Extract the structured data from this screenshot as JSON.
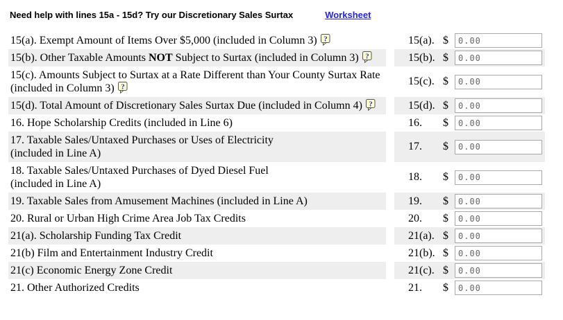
{
  "header": {
    "prompt": "Need help with lines 15a - 15d? Try our Discretionary Sales Surtax",
    "link_label": "Worksheet"
  },
  "form": {
    "currency_symbol": "$",
    "rows": [
      {
        "line": "15(a).",
        "value": "0.00",
        "help": true,
        "label_lines": [
          [
            {
              "text": "15(a). Exempt Amount of Items Over $5,000 (included in Column 3)"
            }
          ]
        ]
      },
      {
        "line": "15(b).",
        "value": "0.00",
        "help": true,
        "label_lines": [
          [
            {
              "text": "15(b). Other Taxable Amounts "
            },
            {
              "text": "NOT",
              "bold": true
            },
            {
              "text": " Subject to Surtax (included in Column 3)"
            }
          ]
        ]
      },
      {
        "line": "15(c).",
        "value": "0.00",
        "help": true,
        "label_lines": [
          [
            {
              "text": "15(c). Amounts Subject to Surtax at a Rate Different than Your County Surtax Rate"
            }
          ],
          [
            {
              "text": "(included in Column 3)"
            }
          ]
        ]
      },
      {
        "line": "15(d).",
        "value": "0.00",
        "help": true,
        "label_lines": [
          [
            {
              "text": "15(d). Total Amount of Discretionary Sales Surtax Due (included in Column 4)"
            }
          ]
        ]
      },
      {
        "line": "16.",
        "value": "0.00",
        "help": false,
        "label_lines": [
          [
            {
              "text": "16. Hope Scholarship Credits (included in Line 6)"
            }
          ]
        ]
      },
      {
        "line": "17.",
        "value": "0.00",
        "help": false,
        "label_lines": [
          [
            {
              "text": "17. Taxable Sales/Untaxed Purchases or Uses of Electricity"
            }
          ],
          [
            {
              "text": "(included in Line A)"
            }
          ]
        ]
      },
      {
        "line": "18.",
        "value": "0.00",
        "help": false,
        "label_lines": [
          [
            {
              "text": "18. Taxable Sales/Untaxed Purchases of Dyed Diesel Fuel"
            }
          ],
          [
            {
              "text": "(included in Line A)"
            }
          ]
        ]
      },
      {
        "line": "19.",
        "value": "0.00",
        "help": false,
        "label_lines": [
          [
            {
              "text": "19. Taxable Sales from Amusement Machines (included in Line A)"
            }
          ]
        ]
      },
      {
        "line": "20.",
        "value": "0.00",
        "help": false,
        "label_lines": [
          [
            {
              "text": "20. Rural or Urban High Crime Area Job Tax Credits"
            }
          ]
        ]
      },
      {
        "line": "21(a).",
        "value": "0.00",
        "help": false,
        "label_lines": [
          [
            {
              "text": "21(a). Scholarship Funding Tax Credit"
            }
          ]
        ]
      },
      {
        "line": "21(b).",
        "value": "0.00",
        "help": false,
        "label_lines": [
          [
            {
              "text": "21(b) Film and Entertainment Industry Credit"
            }
          ]
        ]
      },
      {
        "line": "21(c).",
        "value": "0.00",
        "help": false,
        "label_lines": [
          [
            {
              "text": "21(c) Economic Energy Zone Credit"
            }
          ]
        ]
      },
      {
        "line": "21.",
        "value": "0.00",
        "help": false,
        "label_lines": [
          [
            {
              "text": "21. Other Authorized Credits"
            }
          ]
        ]
      }
    ]
  },
  "colors": {
    "link_blue": "#2222ee",
    "row_shade": "#eeeeee",
    "help_icon_bg": "#ffffcc",
    "help_icon_mark": "#2233cc",
    "input_value_gray": "#666666",
    "input_border": "#a9a9a9"
  }
}
